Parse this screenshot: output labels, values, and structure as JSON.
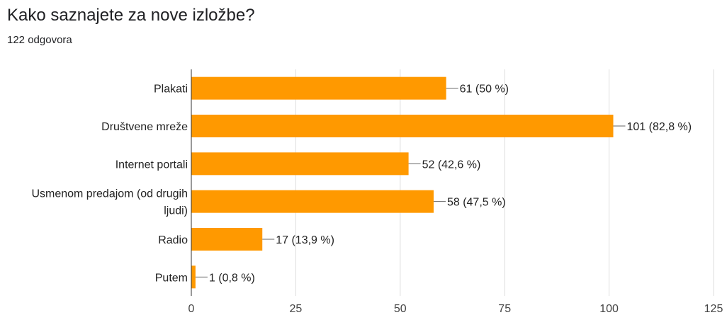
{
  "header": {
    "title": "Kako saznajete za nove izložbe?",
    "subtitle": "122 odgovora"
  },
  "chart_data": {
    "type": "bar",
    "orientation": "horizontal",
    "title": "Kako saznajete za nove izložbe?",
    "subtitle": "122 odgovora",
    "xlabel": "",
    "ylabel": "",
    "xlim": [
      0,
      125
    ],
    "grid": true,
    "bar_color": "#ff9900",
    "categories": [
      [
        "Plakati"
      ],
      [
        "Društvene mreže"
      ],
      [
        "Internet portali"
      ],
      [
        "Usmenom predajom (od drugih",
        "ljudi)"
      ],
      [
        "Radio"
      ],
      [
        "Putem"
      ]
    ],
    "values": [
      61,
      101,
      52,
      58,
      17,
      1
    ],
    "data_labels": [
      "61 (50 %)",
      "101 (82,8 %)",
      "52 (42,6 %)",
      "58 (47,5 %)",
      "17 (13,9 %)",
      "1 (0,8 %)"
    ],
    "ticks": [
      0,
      25,
      50,
      75,
      100,
      125
    ]
  }
}
